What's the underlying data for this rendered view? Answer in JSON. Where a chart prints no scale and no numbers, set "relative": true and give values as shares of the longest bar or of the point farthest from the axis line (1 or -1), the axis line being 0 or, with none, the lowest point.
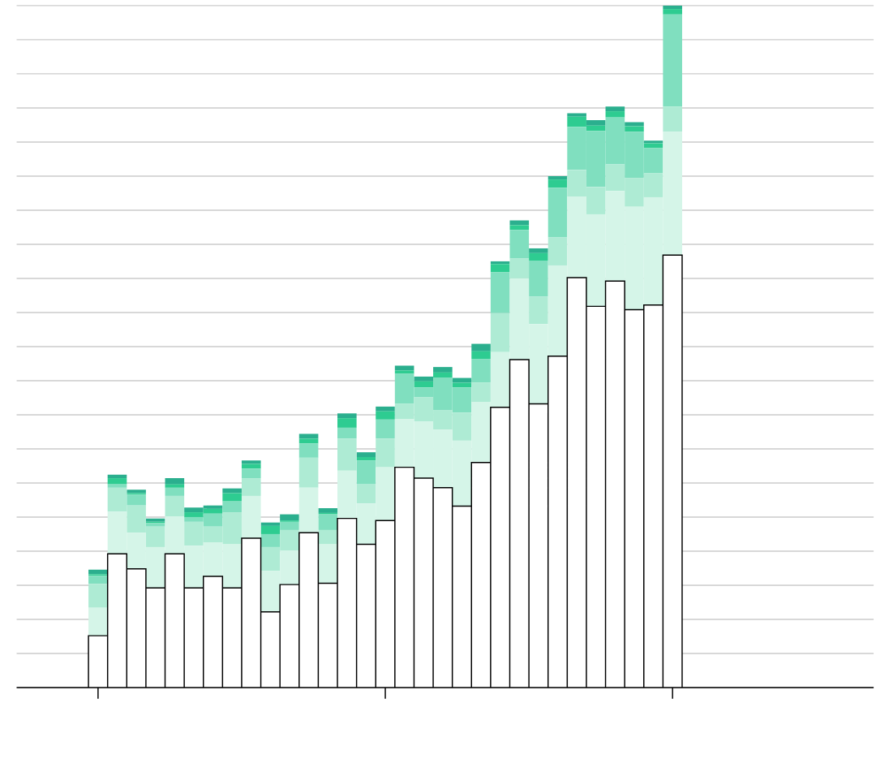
{
  "chart_data": {
    "type": "bar",
    "stacked": true,
    "relative": true,
    "grid": "y",
    "categories": [
      null,
      null,
      null,
      null,
      null,
      null,
      null,
      null,
      null,
      null,
      null,
      null,
      null,
      null,
      null,
      null,
      null,
      null,
      null,
      null,
      null,
      null,
      null,
      null,
      null,
      null,
      null,
      null,
      null,
      null,
      null
    ],
    "series": [
      {
        "color": "#ffffff",
        "values": [
          0.076,
          0.196,
          0.174,
          0.146,
          0.196,
          0.146,
          0.163,
          0.146,
          0.219,
          0.111,
          0.151,
          0.227,
          0.153,
          0.248,
          0.21,
          0.245,
          0.323,
          0.307,
          0.293,
          0.266,
          0.33,
          0.411,
          0.481,
          0.416,
          0.486,
          0.601,
          0.559,
          0.596,
          0.554,
          0.561,
          0.634
        ]
      },
      {
        "color": "#d5f5e8",
        "values": [
          0.041,
          0.062,
          0.053,
          0.06,
          0.055,
          0.062,
          0.05,
          0.064,
          0.062,
          0.06,
          0.05,
          0.066,
          0.057,
          0.07,
          0.06,
          0.078,
          0.071,
          0.083,
          0.085,
          0.096,
          0.089,
          0.081,
          0.119,
          0.117,
          0.133,
          0.119,
          0.135,
          0.132,
          0.151,
          0.158,
          0.181
        ]
      },
      {
        "color": "#aeebd4",
        "values": [
          0.035,
          0.035,
          0.04,
          0.03,
          0.03,
          0.035,
          0.023,
          0.047,
          0.026,
          0.035,
          0.03,
          0.044,
          0.021,
          0.047,
          0.028,
          0.042,
          0.022,
          0.036,
          0.029,
          0.041,
          0.028,
          0.057,
          0.029,
          0.04,
          0.041,
          0.039,
          0.04,
          0.039,
          0.042,
          0.035,
          0.037
        ]
      },
      {
        "color": "#80dfbf",
        "values": [
          0.012,
          0.005,
          0.016,
          0.005,
          0.012,
          0.007,
          0.019,
          0.016,
          0.014,
          0.019,
          0.012,
          0.021,
          0.023,
          0.016,
          0.035,
          0.028,
          0.044,
          0.014,
          0.047,
          0.037,
          0.035,
          0.06,
          0.042,
          0.053,
          0.073,
          0.063,
          0.082,
          0.069,
          0.068,
          0.037,
          0.135
        ]
      },
      {
        "color": "#2ecc91",
        "values": [
          0.002,
          0.009,
          0.002,
          0.002,
          0.005,
          0.007,
          0.007,
          0.012,
          0.007,
          0.012,
          0.002,
          0.007,
          0.002,
          0.014,
          0.005,
          0.012,
          0.005,
          0.009,
          0.008,
          0.007,
          0.011,
          0.012,
          0.007,
          0.011,
          0.012,
          0.015,
          0.008,
          0.009,
          0.008,
          0.007,
          0.008
        ]
      },
      {
        "color": "#2baf8e",
        "values": [
          0.007,
          0.005,
          0.005,
          0.005,
          0.009,
          0.007,
          0.005,
          0.007,
          0.005,
          0.005,
          0.009,
          0.007,
          0.007,
          0.007,
          0.007,
          0.007,
          0.007,
          0.007,
          0.008,
          0.007,
          0.011,
          0.004,
          0.007,
          0.007,
          0.005,
          0.005,
          0.008,
          0.007,
          0.006,
          0.004,
          0.005
        ]
      }
    ]
  }
}
